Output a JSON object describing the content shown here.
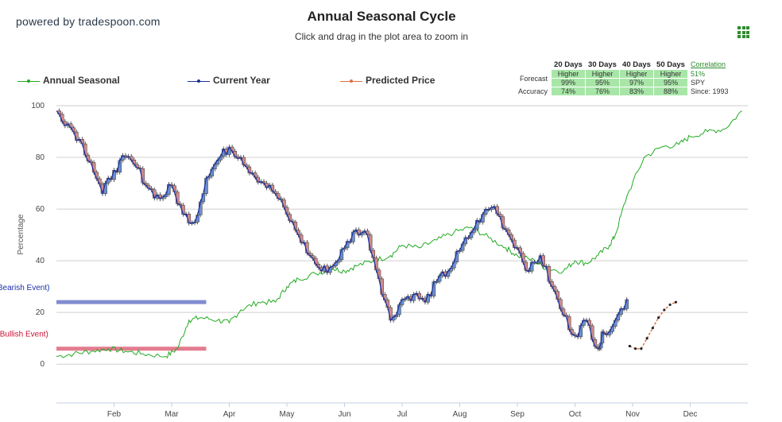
{
  "brand": "powered by tradespoon.com",
  "title": "Annual Seasonal Cycle",
  "subtitle": "Click and drag in the plot area to zoom in",
  "menu_icon": "grid-menu-icon",
  "legend": [
    {
      "name": "Annual Seasonal",
      "color": "#22aa22"
    },
    {
      "name": "Current Year",
      "color": "#1a2f9e"
    },
    {
      "name": "Predicted Price",
      "color": "#e07040"
    }
  ],
  "forecast_table": {
    "headers": [
      "20 Days",
      "30 Days",
      "40 Days",
      "50 Days"
    ],
    "forecast_label": "Forecast",
    "accuracy_label": "Accuracy",
    "forecast": [
      {
        "dir": "Higher",
        "pct": "99%"
      },
      {
        "dir": "Higher",
        "pct": "95%"
      },
      {
        "dir": "Higher",
        "pct": "97%"
      },
      {
        "dir": "Higher",
        "pct": "95%"
      }
    ],
    "accuracy": [
      "74%",
      "76%",
      "83%",
      "88%"
    ],
    "correlation_label": "Correlation",
    "correlation_value": "51%",
    "ticker": "SPY",
    "since": "Since: 1993"
  },
  "chart_data": {
    "type": "line",
    "title": "Annual Seasonal Cycle",
    "ylabel": "Percentage",
    "ylim": [
      -15,
      100
    ],
    "yticks": [
      0,
      20,
      40,
      60,
      80,
      100
    ],
    "grid": true,
    "legend_position": "top-left",
    "xticks": [
      "Feb",
      "Mar",
      "Apr",
      "May",
      "Jun",
      "Jul",
      "Aug",
      "Sep",
      "Oct",
      "Nov",
      "Dec"
    ],
    "series": [
      {
        "name": "Annual Seasonal",
        "color": "#22aa22",
        "x": [
          0,
          0.3,
          0.6,
          0.9,
          1.2,
          1.5,
          1.9,
          2.1,
          2.3,
          2.5,
          2.8,
          3.0,
          3.2,
          3.5,
          3.8,
          4.0,
          4.2,
          4.5,
          4.8,
          5.0,
          5.2,
          5.5,
          5.8,
          6.0,
          6.3,
          6.6,
          6.9,
          7.2,
          7.5,
          7.8,
          8.0,
          8.3,
          8.5,
          8.8,
          9.0,
          9.2,
          9.4,
          9.6,
          9.7,
          9.9,
          10.2,
          10.5,
          10.8,
          11.0,
          11.3,
          11.6,
          11.9
        ],
        "values": [
          3,
          4,
          5,
          6,
          5,
          4,
          3,
          6,
          17,
          18,
          17,
          16,
          21,
          24,
          24,
          30,
          33,
          35,
          37,
          36,
          38,
          40,
          42,
          46,
          45,
          48,
          51,
          53,
          49,
          45,
          42,
          40,
          37,
          36,
          40,
          39,
          42,
          46,
          50,
          65,
          80,
          84,
          85,
          88,
          90,
          91,
          98
        ]
      },
      {
        "name": "Current Year",
        "color": "#1a2f9e",
        "x": [
          0,
          0.2,
          0.4,
          0.6,
          0.8,
          1.0,
          1.2,
          1.4,
          1.6,
          1.8,
          2.0,
          2.2,
          2.4,
          2.6,
          2.8,
          3.0,
          3.2,
          3.4,
          3.6,
          3.8,
          4.0,
          4.2,
          4.4,
          4.6,
          4.8,
          5.0,
          5.2,
          5.4,
          5.6,
          5.8,
          6.0,
          6.2,
          6.4,
          6.6,
          6.8,
          7.0,
          7.2,
          7.4,
          7.6,
          7.8,
          8.0,
          8.2,
          8.4,
          8.6,
          8.8,
          9.0,
          9.2,
          9.4,
          9.5,
          9.7,
          9.9
        ],
        "values": [
          98,
          93,
          87,
          78,
          66,
          75,
          80,
          76,
          68,
          64,
          69,
          58,
          55,
          72,
          79,
          84,
          80,
          74,
          70,
          66,
          58,
          50,
          42,
          36,
          38,
          45,
          52,
          50,
          33,
          17,
          25,
          27,
          24,
          32,
          36,
          44,
          51,
          58,
          61,
          52,
          45,
          36,
          42,
          30,
          19,
          11,
          17,
          6,
          12,
          17,
          25
        ]
      },
      {
        "name": "Predicted Price",
        "color": "#e07040",
        "x": [
          9.95,
          10.05,
          10.15,
          10.25,
          10.35,
          10.45,
          10.55,
          10.65,
          10.75
        ],
        "values": [
          7,
          6,
          6,
          10,
          14,
          18,
          21,
          23,
          24
        ]
      }
    ],
    "annotations": [
      {
        "text": "L (Bearish Event)",
        "color": "#1a2fa8",
        "x_range": [
          0,
          2.6
        ],
        "y": 24
      },
      {
        "text": "Y (Bullish Event)",
        "color": "#cc1133",
        "x_range": [
          0,
          2.6
        ],
        "y": 6
      }
    ]
  }
}
